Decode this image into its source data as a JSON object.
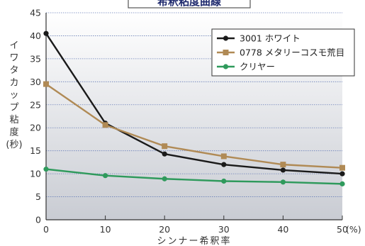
{
  "chart_data": {
    "type": "line",
    "title": "希釈粘度曲線",
    "xlabel": "シンナー希釈率",
    "ylabel_lines": [
      "イ",
      "ワ",
      "タ",
      "カ",
      "ッ",
      "プ",
      "粘",
      "度",
      "(秒)"
    ],
    "x_unit": "(%)",
    "x": [
      0,
      10,
      20,
      30,
      40,
      50
    ],
    "x_ticks": [
      "0",
      "10",
      "20",
      "30",
      "40",
      "50"
    ],
    "ylim": [
      0,
      45
    ],
    "xlim": [
      0,
      50
    ],
    "y_ticks": [
      "0",
      "5",
      "10",
      "15",
      "20",
      "25",
      "30",
      "35",
      "40",
      "45"
    ],
    "grid": true,
    "legend_position": "top-right",
    "series": [
      {
        "name": "3001 ホワイト",
        "values": [
          40.5,
          21,
          14.3,
          12,
          10.8,
          10
        ],
        "color": "#1a1a1a"
      },
      {
        "name": "0778 メタリーコスモ荒目",
        "values": [
          29.5,
          20.6,
          16,
          13.8,
          12,
          11.3
        ],
        "color": "#b08a55"
      },
      {
        "name": "クリヤー",
        "values": [
          11,
          9.6,
          8.9,
          8.4,
          8.2,
          7.8
        ],
        "color": "#2f9a5c"
      }
    ],
    "background_gradient": [
      "#ffffff",
      "#c9ccd3"
    ]
  }
}
